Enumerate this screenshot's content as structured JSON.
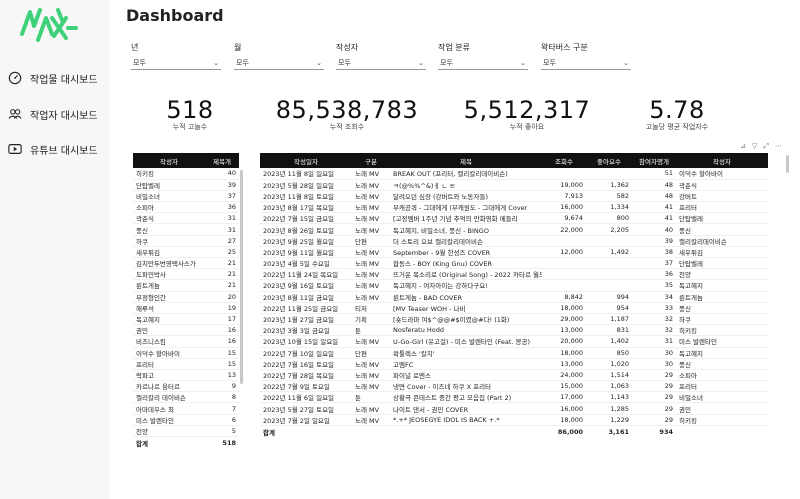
{
  "nav": [
    {
      "label": "작업물 대시보드"
    },
    {
      "label": "작업자 대시보드"
    },
    {
      "label": "유튜브 대시보드"
    }
  ],
  "title": "Dashboard",
  "filters": [
    {
      "label": "년",
      "value": "모두"
    },
    {
      "label": "월",
      "value": "모두"
    },
    {
      "label": "작성자",
      "value": "모두"
    },
    {
      "label": "작업 분류",
      "value": "모두"
    },
    {
      "label": "왁타버스 구분",
      "value": "모두"
    }
  ],
  "kpis": [
    {
      "value": "518",
      "label": "누적 고놀수"
    },
    {
      "value": "85,538,783",
      "label": "누적 조회수"
    },
    {
      "value": "5,512,317",
      "label": "누적 좋아요"
    },
    {
      "value": "5.78",
      "label": "고놀당 평균 작업자수"
    }
  ],
  "toolbar": {
    "pin": "⊿",
    "filter": "▽",
    "expand": "⤢",
    "more": "⋯"
  },
  "writers_table": {
    "headers": [
      "작성자",
      "제목개"
    ],
    "rows": [
      [
        "히키킹",
        "40"
      ],
      [
        "단탑벨레",
        "39"
      ],
      [
        "비밀소녀",
        "37"
      ],
      [
        "소피아",
        "36"
      ],
      [
        "곽춘식",
        "31"
      ],
      [
        "풍신",
        "31"
      ],
      [
        "하쿠",
        "27"
      ],
      [
        "새우튀김",
        "25"
      ],
      [
        "김치만두번영택사스가",
        "21"
      ],
      [
        "도파민박사",
        "21"
      ],
      [
        "륀트게늄",
        "21"
      ],
      [
        "부정형인간",
        "20"
      ],
      [
        "해루석",
        "19"
      ],
      [
        "독고혜지",
        "17"
      ],
      [
        "권민",
        "16"
      ],
      [
        "비즈니스킴",
        "16"
      ],
      [
        "이덕수 할아바이",
        "15"
      ],
      [
        "프리터",
        "15"
      ],
      [
        "락파고",
        "13"
      ],
      [
        "카르나르 융터르",
        "9"
      ],
      [
        "캘리칼리 데이비슨",
        "8"
      ],
      [
        "아마데우스 최",
        "7"
      ],
      [
        "미스 발렌타인",
        "6"
      ],
      [
        "천양",
        "5"
      ]
    ],
    "total_label": "합계",
    "total_value": "518"
  },
  "works_table": {
    "headers": [
      "작성일자",
      "구분",
      "제목",
      "조회수",
      "좋아요수",
      "참여자명개",
      "작성자"
    ],
    "rows": [
      [
        "2023년 11월 8일 일요일",
        "노래 MV",
        "BREAK OUT (프리터, 캘리칼리데이비슨)",
        "",
        "",
        "51",
        "이덕수 할아바이"
      ],
      [
        "2023년 5월 28일 일요일",
        "노래 MV",
        "ㅋ(@%%^&)ㅔ ㄴ ㅌ",
        "19,000",
        "1,362",
        "48",
        "곽춘식"
      ],
      [
        "2023년 11월 8일 토요일",
        "노래 MV",
        "달려오던 심장 (강버트와 노동자들)",
        "7,913",
        "582",
        "48",
        "강버트"
      ],
      [
        "2023년 8월 17일 목요일",
        "노래 MV",
        "부캐공쿼 - 그대에게 (부캐원도 - 그대에게 Cover",
        "16,000",
        "1,334",
        "41",
        "프리터"
      ],
      [
        "2022년 7월 15일 금요일",
        "노래 MV",
        "[고정멤버 1주년 기념 추억의 만화영화 메들리",
        "9,674",
        "800",
        "41",
        "단탑벨레"
      ],
      [
        "2023년 8월 26일 토요일",
        "노래 MV",
        "독고혜지, 비밀소녀, 풍신 - BINGO",
        "22,000",
        "2,205",
        "40",
        "풍신"
      ],
      [
        "2023년 9월 25일 월요일",
        "단편",
        "더 스토리 오브 캘리칼리데이비슨",
        "",
        "",
        "39",
        "캘리칼리데이비슨"
      ],
      [
        "2023년 9월 11일 월요일",
        "노래 MV",
        "September - 9월 한성즈 COVER",
        "12,000",
        "1,492",
        "38",
        "새우튀김"
      ],
      [
        "2023년 4월 5일 수요일",
        "노래 MV",
        "합동스 - BOY (King Gnu) COVER",
        "",
        "",
        "37",
        "단탑벨레"
      ],
      [
        "2022년 11월 24일 목요일",
        "노래 MV",
        "뜨거운 목소리로 (Original Song) - 2022 카타르 월드컵 응원가",
        "",
        "",
        "36",
        "천양"
      ],
      [
        "2023년 9월 16일 토요일",
        "노래 MV",
        "독고혜지 - 여자아이는 강하다구요!",
        "",
        "",
        "35",
        "독고혜지"
      ],
      [
        "2023년 8월 11일 금요일",
        "노래 MV",
        "륀트게늄 - BAD COVER",
        "8,842",
        "994",
        "34",
        "륀트게늄"
      ],
      [
        "2022년 11월 25일 금요일",
        "티저",
        "[MV Teaser WOH - 나비",
        "18,000",
        "954",
        "33",
        "풍신"
      ],
      [
        "2023년 1월 27일 금요일",
        "기획",
        "[숏드라마 여$^@@#$이였@#다! (1화)",
        "29,000",
        "1,187",
        "32",
        "하쿠"
      ],
      [
        "2023년 3월 3일 금요일",
        "툰",
        "Nosferatu Hodd",
        "13,000",
        "831",
        "32",
        "히키킹"
      ],
      [
        "2023년 10월 15일 일요일",
        "노래 MV",
        "U-Go-Girl (유고걸) - 미스 발렌타인 (Feat. 봉공)",
        "20,000",
        "1,402",
        "31",
        "미스 발렌타인"
      ],
      [
        "2022년 7월 10일 일요일",
        "단편",
        "왁툴렉스 '칼치'",
        "18,000",
        "850",
        "30",
        "독고혜지"
      ],
      [
        "2022년 7월 16일 토요일",
        "노래 MV",
        "고멤FC",
        "13,000",
        "1,020",
        "30",
        "풍신"
      ],
      [
        "2022년 7월 28일 목요일",
        "노래 MV",
        "파이널 로멘스",
        "24,000",
        "1,514",
        "29",
        "소피아"
      ],
      [
        "2022년 7월 9일 토요일",
        "노래 MV",
        "냉면 Cover - 이즈네 하쿠 X 프리터",
        "15,000",
        "1,063",
        "29",
        "프리터"
      ],
      [
        "2022년 11월 6일 일요일",
        "툰",
        "상황극 콘테스트 중간 평고 모음집 (Part 2)",
        "17,000",
        "1,143",
        "29",
        "비밀소녀"
      ],
      [
        "2023년 5월 27일 토요일",
        "노래 MV",
        "나이트 댄서 - 권민 COVER",
        "16,000",
        "1,285",
        "29",
        "권민"
      ],
      [
        "2023년 7월 2일 일요일",
        "노래 MV",
        "*.+* JEOSEGYE IDOL IS BACK +.*",
        "18,000",
        "1,229",
        "29",
        "히키킹"
      ]
    ],
    "total_label": "합계",
    "total_views": "86,000",
    "total_likes": "3,161",
    "total_participants": "934"
  }
}
